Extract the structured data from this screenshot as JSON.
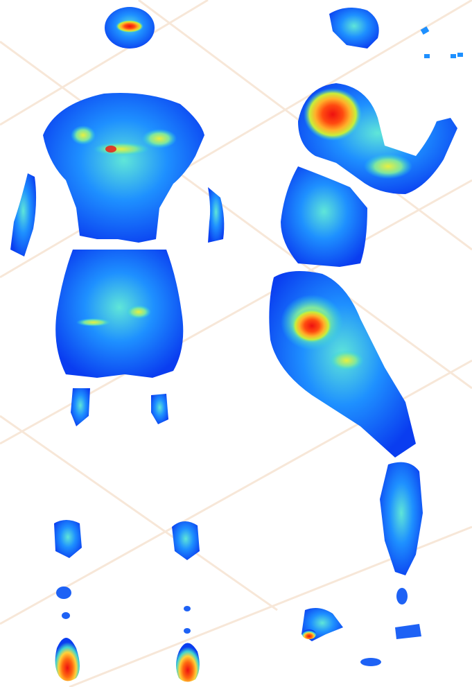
{
  "image": {
    "kind": "thermal-pressure-heatmap",
    "views": [
      "front-body",
      "side-body"
    ],
    "palette": {
      "background": "#ffffff",
      "grid_line": "#f3dcc8",
      "low": "#0a3df0",
      "mid_low": "#1e90ff",
      "mid": "#29d3e6",
      "mid_high": "#b8f03a",
      "high": "#ffd23a",
      "very_high": "#ff7a12",
      "peak": "#ee1010"
    }
  }
}
